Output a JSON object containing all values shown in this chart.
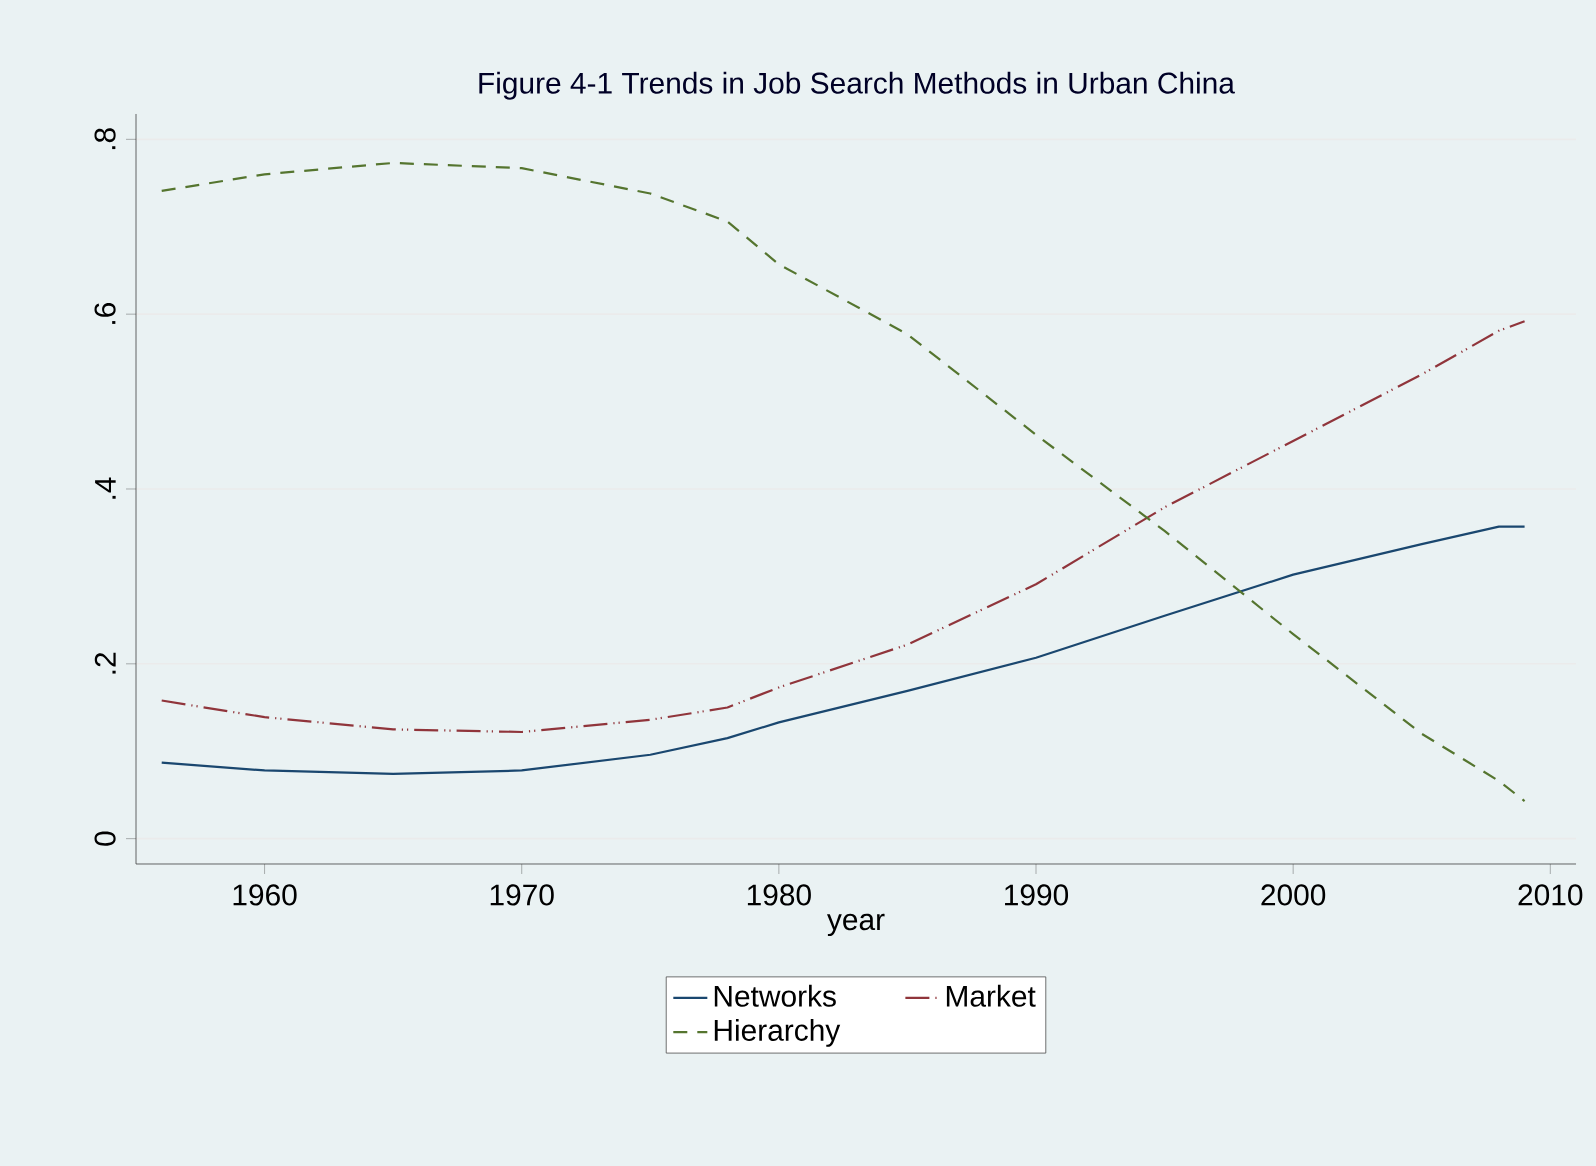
{
  "chart_data": {
    "type": "line",
    "title": "Figure 4-1 Trends in Job Search Methods in Urban China",
    "xlabel": "year",
    "x": [
      1956,
      1960,
      1965,
      1970,
      1975,
      1978,
      1980,
      1985,
      1990,
      1995,
      2000,
      2005,
      2008,
      2009
    ],
    "series": [
      {
        "name": "Networks",
        "color": "#1a476f",
        "line_style": "solid",
        "values": [
          0.087,
          0.078,
          0.074,
          0.078,
          0.096,
          0.115,
          0.133,
          0.169,
          0.207,
          0.255,
          0.302,
          0.337,
          0.357,
          0.357
        ]
      },
      {
        "name": "Market",
        "color": "#90353b",
        "line_style": "dashdot",
        "values": [
          0.158,
          0.139,
          0.125,
          0.122,
          0.136,
          0.15,
          0.173,
          0.222,
          0.291,
          0.379,
          0.455,
          0.531,
          0.581,
          0.592
        ]
      },
      {
        "name": "Hierarchy",
        "color": "#55752f",
        "line_style": "dashed",
        "values": [
          0.741,
          0.76,
          0.773,
          0.767,
          0.738,
          0.706,
          0.657,
          0.577,
          0.462,
          0.352,
          0.234,
          0.12,
          0.066,
          0.043
        ]
      }
    ],
    "xlim": [
      1955,
      2011
    ],
    "ylim": [
      -0.029,
      0.829
    ],
    "xticks": [
      1960,
      1970,
      1980,
      1990,
      2000,
      2010
    ],
    "yticks": [
      0,
      {
        "value": 0.2,
        "label": ".2"
      },
      {
        "value": 0.4,
        "label": ".4"
      },
      {
        "value": 0.6,
        "label": ".6"
      },
      {
        "value": 0.8,
        "label": ".8"
      }
    ],
    "grid": "y",
    "legend": "bottom",
    "marker": "none"
  }
}
